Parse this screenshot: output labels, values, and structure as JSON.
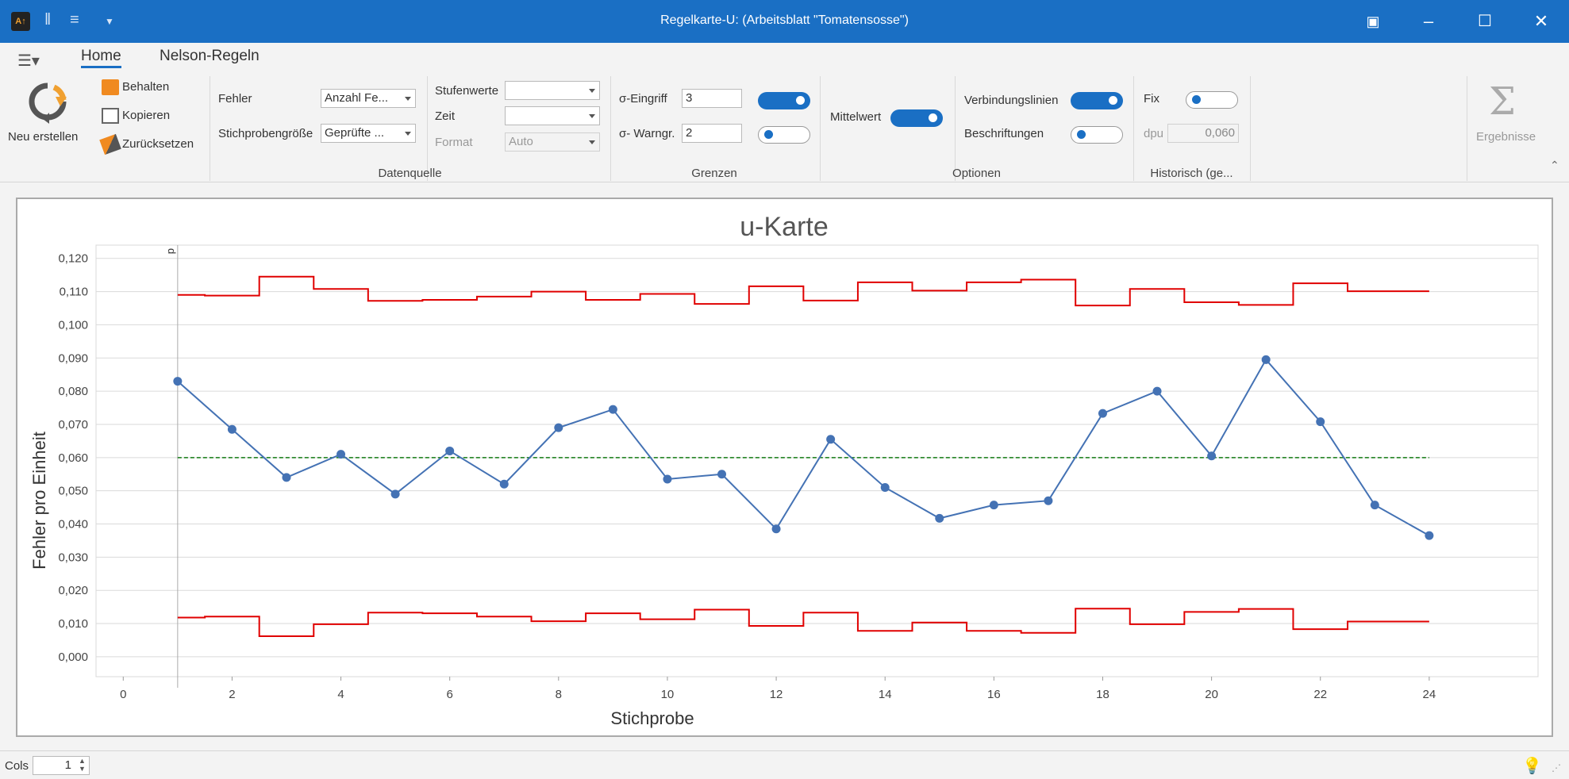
{
  "window": {
    "title": "Regelkarte-U:  (Arbeitsblatt \"Tomatensosse\")"
  },
  "tabs": [
    {
      "label": "Home"
    },
    {
      "label": "Nelson-Regeln"
    }
  ],
  "ribbon": {
    "actions": {
      "new": "Neu erstellen",
      "keep": "Behalten",
      "copy": "Kopieren",
      "reset": "Zurücksetzen"
    },
    "datasource": {
      "group_label": "Datenquelle",
      "fehler_label": "Fehler",
      "fehler_value": "Anzahl Fe...",
      "stichprobe_label": "Stichprobengröße",
      "stichprobe_value": "Geprüfte ...",
      "stufen_label": "Stufenwerte",
      "stufen_value": "",
      "zeit_label": "Zeit",
      "zeit_value": "",
      "format_label": "Format",
      "format_value": "Auto"
    },
    "limits": {
      "group_label": "Grenzen",
      "eingriff_label": "σ-Eingriff",
      "eingriff_value": "3",
      "warn_label": "σ- Warngr.",
      "warn_value": "2"
    },
    "options": {
      "group_label": "Optionen",
      "mean_label": "Mittelwert",
      "lines_label": "Verbindungslinien",
      "labels_label": "Beschriftungen"
    },
    "historical": {
      "group_label": "Historisch (ge...",
      "fix_label": "Fix",
      "dpu_label": "dpu",
      "dpu_value": "0,060"
    },
    "results": {
      "label": "Ergebnisse"
    }
  },
  "toggles": {
    "eingriff": true,
    "warn": false,
    "mean": true,
    "lines": true,
    "labels": false,
    "fix": false
  },
  "statusbar": {
    "cols_label": "Cols",
    "cols_value": "1"
  },
  "colors": {
    "accent": "#1a6fc4",
    "limits": "#e00000",
    "series": "#4472b4",
    "center": "#117a11"
  },
  "chart_data": {
    "type": "line",
    "title": "u-Karte",
    "xlabel": "Stichprobe",
    "ylabel": "Fehler pro Einheit",
    "xlim": [
      -0.5,
      26
    ],
    "ylim": [
      -0.006,
      0.124
    ],
    "xticks": [
      0,
      2,
      4,
      6,
      8,
      10,
      12,
      14,
      16,
      18,
      20,
      22,
      24
    ],
    "yticks": [
      "0,000",
      "0,010",
      "0,020",
      "0,030",
      "0,040",
      "0,050",
      "0,060",
      "0,070",
      "0,080",
      "0,090",
      "0,100",
      "0,110",
      "0,120"
    ],
    "phase_marker": "d",
    "center_line": 0.06,
    "x": [
      1,
      2,
      3,
      4,
      5,
      6,
      7,
      8,
      9,
      10,
      11,
      12,
      13,
      14,
      15,
      16,
      17,
      18,
      19,
      20,
      21,
      22,
      23,
      24
    ],
    "series": [
      {
        "values": [
          0.083,
          0.0685,
          0.054,
          0.061,
          0.049,
          0.062,
          0.052,
          0.069,
          0.0745,
          0.0535,
          0.055,
          0.0385,
          0.0655,
          0.051,
          0.0417,
          0.0457,
          0.047,
          0.0733,
          0.08,
          0.0605,
          0.0895,
          0.0708,
          0.0457,
          0.0365
        ]
      }
    ],
    "ucl": [
      0.109,
      0.1088,
      0.1145,
      0.1108,
      0.1072,
      0.1075,
      0.1085,
      0.11,
      0.1075,
      0.1093,
      0.1063,
      0.1116,
      0.1073,
      0.1128,
      0.1103,
      0.1128,
      0.1136,
      0.1058,
      0.1108,
      0.1068,
      0.106,
      0.1125,
      0.1101,
      0.1101
    ],
    "lcl": [
      0.0118,
      0.0121,
      0.0062,
      0.0098,
      0.0133,
      0.0131,
      0.0121,
      0.0107,
      0.0131,
      0.0113,
      0.0142,
      0.0093,
      0.0133,
      0.0078,
      0.0103,
      0.0078,
      0.0072,
      0.0145,
      0.0098,
      0.0135,
      0.0144,
      0.0083,
      0.0106,
      0.0106
    ]
  }
}
